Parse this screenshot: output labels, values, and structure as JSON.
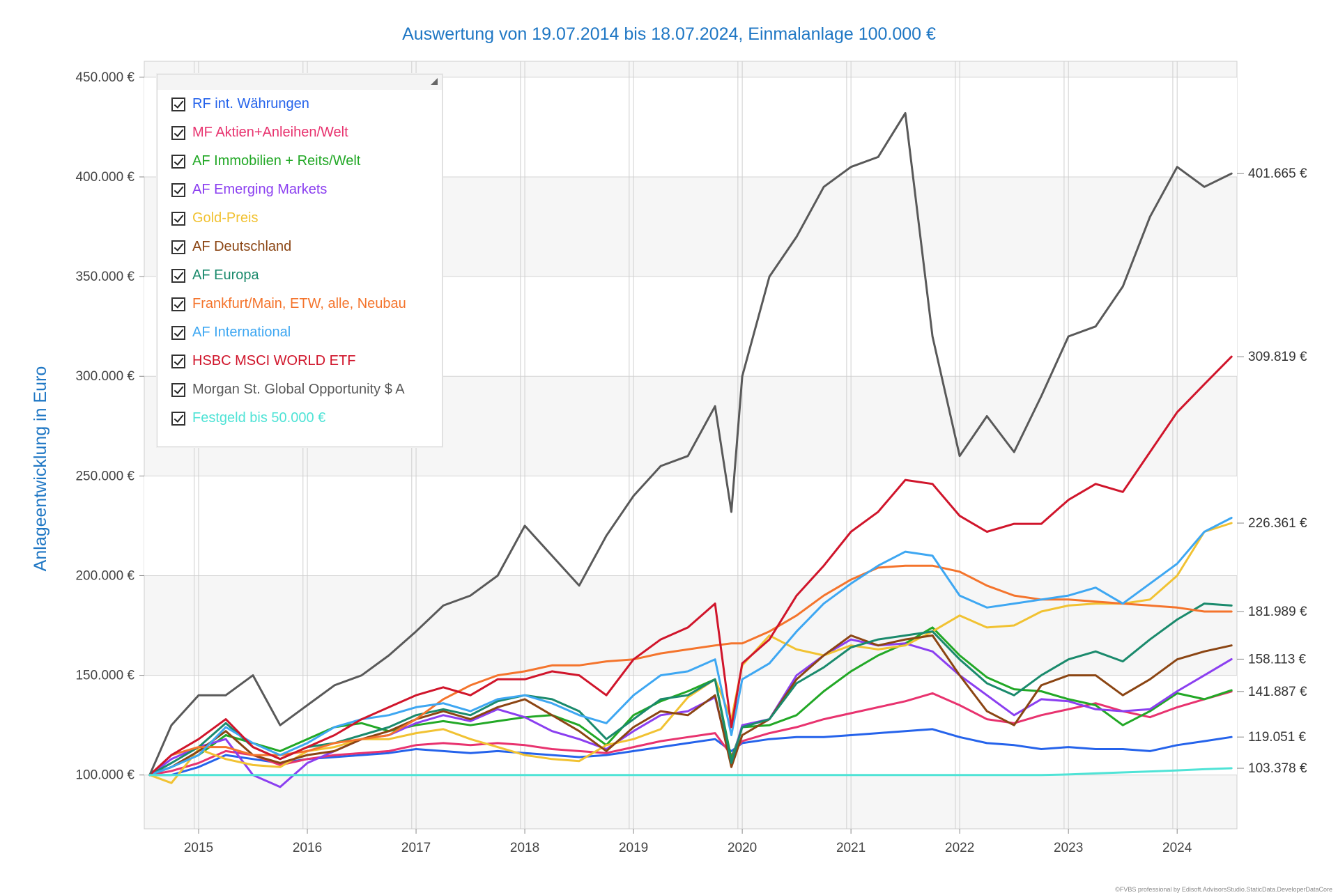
{
  "chart_data": {
    "type": "line",
    "title": "Auswertung von 19.07.2014 bis 18.07.2024, Einmalanlage 100.000 €",
    "ylabel": "Anlageentwicklung  in Euro",
    "xlabel": "",
    "ylim": [
      73000,
      458000
    ],
    "xlim": [
      2014.5,
      2024.55
    ],
    "y_ticks": [
      {
        "value": 100000,
        "label": "100.000 €"
      },
      {
        "value": 150000,
        "label": "150.000 €"
      },
      {
        "value": 200000,
        "label": "200.000 €"
      },
      {
        "value": 250000,
        "label": "250.000 €"
      },
      {
        "value": 300000,
        "label": "300.000 €"
      },
      {
        "value": 350000,
        "label": "350.000 €"
      },
      {
        "value": 400000,
        "label": "400.000 €"
      },
      {
        "value": 450000,
        "label": "450.000 €"
      }
    ],
    "x_ticks": [
      {
        "value": 2015,
        "label": "2015"
      },
      {
        "value": 2016,
        "label": "2016"
      },
      {
        "value": 2017,
        "label": "2017"
      },
      {
        "value": 2018,
        "label": "2018"
      },
      {
        "value": 2019,
        "label": "2019"
      },
      {
        "value": 2020,
        "label": "2020"
      },
      {
        "value": 2021,
        "label": "2021"
      },
      {
        "value": 2022,
        "label": "2022"
      },
      {
        "value": 2023,
        "label": "2023"
      },
      {
        "value": 2024,
        "label": "2024"
      }
    ],
    "vertical_gridlines": [
      2015.0,
      2016.0,
      2017.0,
      2018.0,
      2019.0,
      2020.0,
      2021.0,
      2022.0,
      2023.0,
      2024.0,
      2014.96,
      2015.96,
      2016.96,
      2017.96,
      2018.96,
      2019.96,
      2020.96,
      2021.96,
      2022.96,
      2023.96
    ],
    "grid": true,
    "legend_position": "top-left",
    "end_labels": [
      {
        "value": 401665,
        "label": "401.665 €"
      },
      {
        "value": 309819,
        "label": "309.819 €"
      },
      {
        "value": 226361,
        "label": "226.361 €"
      },
      {
        "value": 181989,
        "label": "181.989 €"
      },
      {
        "value": 158113,
        "label": "158.113 €"
      },
      {
        "value": 141887,
        "label": "141.887 €"
      },
      {
        "value": 119051,
        "label": "119.051 €"
      },
      {
        "value": 103378,
        "label": "103.378 €"
      }
    ],
    "x": [
      2014.55,
      2014.75,
      2015.0,
      2015.25,
      2015.5,
      2015.75,
      2016.0,
      2016.25,
      2016.5,
      2016.75,
      2017.0,
      2017.25,
      2017.5,
      2017.75,
      2018.0,
      2018.25,
      2018.5,
      2018.75,
      2019.0,
      2019.25,
      2019.5,
      2019.75,
      2019.9,
      2020.0,
      2020.25,
      2020.5,
      2020.75,
      2021.0,
      2021.25,
      2021.5,
      2021.75,
      2022.0,
      2022.25,
      2022.5,
      2022.75,
      2023.0,
      2023.25,
      2023.5,
      2023.75,
      2024.0,
      2024.25,
      2024.5
    ],
    "series": [
      {
        "name": "RF int. Währungen",
        "color": "#2563eb",
        "values": [
          100000,
          100000,
          104000,
          110000,
          108000,
          106000,
          108000,
          109000,
          110000,
          111000,
          113000,
          112000,
          111000,
          112000,
          111000,
          110000,
          109000,
          110000,
          112000,
          114000,
          116000,
          118000,
          112000,
          116000,
          118000,
          119000,
          119000,
          120000,
          121000,
          122000,
          123000,
          119000,
          116000,
          115000,
          113000,
          114000,
          113000,
          113000,
          112000,
          115000,
          117000,
          119051
        ]
      },
      {
        "name": "MF Aktien+Anleihen/Welt",
        "color": "#e8336f",
        "values": [
          100000,
          102000,
          106000,
          112000,
          110000,
          105000,
          108000,
          110000,
          111000,
          112000,
          115000,
          116000,
          115000,
          116000,
          115000,
          113000,
          112000,
          111000,
          114000,
          117000,
          119000,
          121000,
          110000,
          117000,
          121000,
          124000,
          128000,
          131000,
          134000,
          137000,
          141000,
          135000,
          128000,
          126000,
          130000,
          133000,
          136000,
          132000,
          129000,
          134000,
          138000,
          141887
        ]
      },
      {
        "name": "AF Immobilien + Reits/Welt",
        "color": "#22a826",
        "values": [
          100000,
          104000,
          110000,
          120000,
          116000,
          112000,
          118000,
          124000,
          126000,
          122000,
          125000,
          127000,
          125000,
          127000,
          129000,
          130000,
          125000,
          115000,
          130000,
          137000,
          142000,
          148000,
          108000,
          124000,
          125000,
          130000,
          142000,
          152000,
          160000,
          166000,
          174000,
          160000,
          149000,
          143000,
          142000,
          138000,
          135000,
          125000,
          132000,
          141000,
          138000,
          142500
        ]
      },
      {
        "name": "AF Emerging Markets",
        "color": "#8b3ff0",
        "values": [
          100000,
          108000,
          114000,
          118000,
          100000,
          94000,
          106000,
          112000,
          118000,
          120000,
          126000,
          130000,
          127000,
          133000,
          129000,
          122000,
          118000,
          113000,
          122000,
          130000,
          132000,
          139000,
          106000,
          125000,
          128000,
          150000,
          160000,
          168000,
          165000,
          166000,
          162000,
          150000,
          140000,
          130000,
          138000,
          137000,
          133000,
          132000,
          133000,
          142000,
          150000,
          158113
        ]
      },
      {
        "name": "Gold-Preis",
        "color": "#f1c232",
        "values": [
          100000,
          96000,
          113000,
          108000,
          105000,
          104000,
          112000,
          114000,
          118000,
          118000,
          121000,
          123000,
          118000,
          114000,
          110000,
          108000,
          107000,
          115000,
          118000,
          123000,
          139000,
          148000,
          128000,
          155000,
          170000,
          163000,
          160000,
          165000,
          163000,
          165000,
          172000,
          180000,
          174000,
          175000,
          182000,
          185000,
          186000,
          186000,
          188000,
          200000,
          222000,
          226361
        ]
      },
      {
        "name": "AF Deutschland",
        "color": "#8b4513",
        "values": [
          100000,
          104000,
          112000,
          122000,
          110000,
          106000,
          110000,
          112000,
          118000,
          122000,
          128000,
          132000,
          128000,
          134000,
          138000,
          130000,
          122000,
          112000,
          124000,
          132000,
          130000,
          140000,
          104000,
          120000,
          128000,
          148000,
          160000,
          170000,
          165000,
          168000,
          170000,
          150000,
          132000,
          125000,
          145000,
          150000,
          150000,
          140000,
          148000,
          158000,
          162000,
          165000
        ]
      },
      {
        "name": "AF Europa",
        "color": "#1a8a6c",
        "values": [
          100000,
          106000,
          114000,
          126000,
          114000,
          108000,
          114000,
          116000,
          120000,
          124000,
          130000,
          133000,
          130000,
          137000,
          140000,
          138000,
          132000,
          118000,
          128000,
          138000,
          140000,
          148000,
          106000,
          124000,
          128000,
          146000,
          154000,
          164000,
          168000,
          170000,
          172000,
          158000,
          146000,
          140000,
          150000,
          158000,
          162000,
          157000,
          168000,
          178000,
          186000,
          185000
        ]
      },
      {
        "name": "Frankfurt/Main, ETW, alle, Neubau",
        "color": "#f4742c",
        "values": [
          100000,
          110000,
          114000,
          114000,
          110000,
          110000,
          112000,
          116000,
          118000,
          120000,
          128000,
          138000,
          145000,
          150000,
          152000,
          155000,
          155000,
          157000,
          158000,
          161000,
          163000,
          165000,
          166000,
          166000,
          172000,
          180000,
          190000,
          198000,
          204000,
          205000,
          205000,
          202000,
          195000,
          190000,
          188000,
          188000,
          187000,
          186000,
          185000,
          184000,
          182000,
          181989
        ]
      },
      {
        "name": "AF International",
        "color": "#3ea7f2",
        "values": [
          100000,
          104000,
          110000,
          124000,
          116000,
          110000,
          116000,
          124000,
          128000,
          130000,
          134000,
          136000,
          132000,
          138000,
          140000,
          136000,
          130000,
          126000,
          140000,
          150000,
          152000,
          158000,
          120000,
          148000,
          156000,
          172000,
          186000,
          196000,
          205000,
          212000,
          210000,
          190000,
          184000,
          186000,
          188000,
          190000,
          194000,
          186000,
          196000,
          206000,
          222000,
          229000
        ]
      },
      {
        "name": "HSBC MSCI WORLD ETF",
        "color": "#d0152b",
        "values": [
          100000,
          110000,
          118000,
          128000,
          114000,
          108000,
          114000,
          120000,
          128000,
          134000,
          140000,
          144000,
          140000,
          148000,
          148000,
          152000,
          150000,
          140000,
          158000,
          168000,
          174000,
          186000,
          124000,
          156000,
          168000,
          190000,
          205000,
          222000,
          232000,
          248000,
          246000,
          230000,
          222000,
          226000,
          226000,
          238000,
          246000,
          242000,
          262000,
          282000,
          296000,
          309819
        ]
      },
      {
        "name": "Morgan St. Global Opportunity $ A",
        "color": "#595959",
        "values": [
          100000,
          125000,
          140000,
          140000,
          150000,
          125000,
          135000,
          145000,
          150000,
          160000,
          172000,
          185000,
          190000,
          200000,
          225000,
          210000,
          195000,
          220000,
          240000,
          255000,
          260000,
          285000,
          232000,
          300000,
          350000,
          370000,
          395000,
          405000,
          410000,
          432000,
          320000,
          260000,
          280000,
          262000,
          290000,
          320000,
          325000,
          345000,
          380000,
          405000,
          395000,
          401665
        ]
      },
      {
        "name": "Festgeld bis 50.000 €",
        "color": "#4fe3d6",
        "values": [
          100000,
          100000,
          100000,
          100000,
          100000,
          100000,
          100000,
          100000,
          100000,
          100000,
          100000,
          100000,
          100000,
          100000,
          100000,
          100000,
          100000,
          100000,
          100000,
          100000,
          100000,
          100000,
          100000,
          100000,
          100000,
          100000,
          100000,
          100000,
          100000,
          100000,
          100000,
          100000,
          100000,
          100000,
          100000,
          100300,
          100800,
          101300,
          101800,
          102300,
          102900,
          103378
        ]
      }
    ]
  },
  "footer": "©FVBS professional by Edisoft.AdvisorsStudio.StaticData.DeveloperDataCore"
}
